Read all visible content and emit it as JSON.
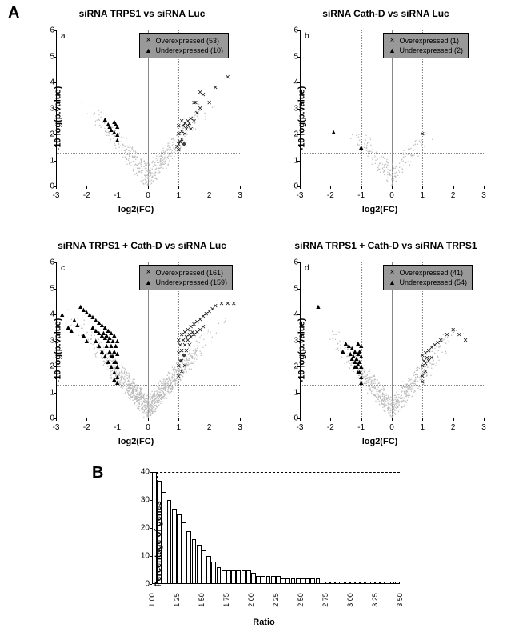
{
  "panelA": {
    "label": "A",
    "xlabel": "log2(FC)",
    "ylabel": "-10 log(p.value)",
    "xlim": [
      -3,
      3
    ],
    "ylim": [
      0,
      6
    ],
    "xticks": [
      -3,
      -2,
      -1,
      0,
      1,
      2,
      3
    ],
    "yticks": [
      0,
      1,
      2,
      3,
      4,
      5,
      6
    ],
    "threshold_x": [
      -1,
      1
    ],
    "threshold_y": 1.3,
    "colors": {
      "bg_point": "#bbbbbb",
      "sig_point": "#000000",
      "legend_bg": "#999999"
    },
    "charts": [
      {
        "id": "a",
        "title": "siRNA TRPS1 vs siRNA Luc",
        "legend": {
          "over": "Overexpressed  (53)",
          "under": "Underexpressed (10)"
        },
        "over_points": [
          [
            0.95,
            1.5
          ],
          [
            1.0,
            2.0
          ],
          [
            1.0,
            2.3
          ],
          [
            1.05,
            1.7
          ],
          [
            1.1,
            2.1
          ],
          [
            1.1,
            2.5
          ],
          [
            1.15,
            2.3
          ],
          [
            1.2,
            2.0
          ],
          [
            1.2,
            2.4
          ],
          [
            1.25,
            2.2
          ],
          [
            1.3,
            2.5
          ],
          [
            1.3,
            2.3
          ],
          [
            1.35,
            2.4
          ],
          [
            1.4,
            2.6
          ],
          [
            1.4,
            2.2
          ],
          [
            1.5,
            2.5
          ],
          [
            1.5,
            3.2
          ],
          [
            1.55,
            3.2
          ],
          [
            1.6,
            2.8
          ],
          [
            1.7,
            3.0
          ],
          [
            1.7,
            3.6
          ],
          [
            1.8,
            3.5
          ],
          [
            2.0,
            3.2
          ],
          [
            2.2,
            3.8
          ],
          [
            2.6,
            4.2
          ],
          [
            1.0,
            1.6
          ],
          [
            1.1,
            1.8
          ],
          [
            1.2,
            1.6
          ],
          [
            1.0,
            1.4
          ],
          [
            1.15,
            1.6
          ]
        ],
        "under_points": [
          [
            -1.0,
            2.0
          ],
          [
            -1.0,
            2.3
          ],
          [
            -1.05,
            2.4
          ],
          [
            -1.1,
            2.1
          ],
          [
            -1.1,
            2.5
          ],
          [
            -1.2,
            2.2
          ],
          [
            -1.25,
            2.3
          ],
          [
            -1.3,
            2.4
          ],
          [
            -1.4,
            2.6
          ],
          [
            -1.0,
            1.8
          ]
        ],
        "bg_density": "low"
      },
      {
        "id": "b",
        "title": "siRNA Cath-D vs siRNA Luc",
        "legend": {
          "over": "Overexpressed  (1)",
          "under": "Underexpressed (2)"
        },
        "over_points": [
          [
            1.0,
            2.0
          ]
        ],
        "under_points": [
          [
            -1.9,
            2.1
          ],
          [
            -1.0,
            1.5
          ]
        ],
        "bg_density": "verylow"
      },
      {
        "id": "c",
        "title": "siRNA TRPS1 + Cath-D  vs siRNA Luc",
        "legend": {
          "over": "Overexpressed  (161)",
          "under": "Underexpressed (159)"
        },
        "over_points": [
          [
            1.0,
            2.5
          ],
          [
            1.0,
            3.0
          ],
          [
            1.05,
            2.8
          ],
          [
            1.1,
            3.2
          ],
          [
            1.1,
            2.6
          ],
          [
            1.15,
            3.0
          ],
          [
            1.2,
            3.3
          ],
          [
            1.2,
            2.8
          ],
          [
            1.25,
            3.1
          ],
          [
            1.3,
            3.4
          ],
          [
            1.3,
            3.0
          ],
          [
            1.35,
            3.2
          ],
          [
            1.4,
            3.5
          ],
          [
            1.4,
            3.1
          ],
          [
            1.45,
            3.3
          ],
          [
            1.5,
            3.6
          ],
          [
            1.5,
            3.2
          ],
          [
            1.6,
            3.7
          ],
          [
            1.6,
            3.3
          ],
          [
            1.7,
            3.8
          ],
          [
            1.7,
            3.4
          ],
          [
            1.8,
            3.9
          ],
          [
            1.8,
            3.5
          ],
          [
            1.9,
            4.0
          ],
          [
            2.0,
            4.1
          ],
          [
            2.1,
            4.2
          ],
          [
            2.2,
            4.3
          ],
          [
            2.4,
            4.4
          ],
          [
            2.6,
            4.4
          ],
          [
            2.8,
            4.4
          ],
          [
            1.0,
            2.0
          ],
          [
            1.1,
            2.2
          ],
          [
            1.2,
            2.4
          ],
          [
            1.05,
            2.2
          ],
          [
            1.15,
            2.4
          ],
          [
            1.25,
            2.6
          ],
          [
            1.35,
            2.8
          ],
          [
            1.0,
            1.6
          ],
          [
            1.1,
            1.8
          ],
          [
            1.2,
            2.0
          ]
        ],
        "under_points": [
          [
            -1.0,
            2.5
          ],
          [
            -1.0,
            3.0
          ],
          [
            -1.05,
            2.8
          ],
          [
            -1.1,
            3.2
          ],
          [
            -1.1,
            2.6
          ],
          [
            -1.15,
            3.0
          ],
          [
            -1.2,
            3.3
          ],
          [
            -1.2,
            2.8
          ],
          [
            -1.25,
            3.1
          ],
          [
            -1.3,
            3.4
          ],
          [
            -1.3,
            3.0
          ],
          [
            -1.35,
            3.2
          ],
          [
            -1.4,
            3.5
          ],
          [
            -1.4,
            3.1
          ],
          [
            -1.45,
            3.3
          ],
          [
            -1.5,
            3.6
          ],
          [
            -1.5,
            3.2
          ],
          [
            -1.6,
            3.7
          ],
          [
            -1.6,
            3.3
          ],
          [
            -1.7,
            3.8
          ],
          [
            -1.7,
            3.4
          ],
          [
            -1.8,
            3.9
          ],
          [
            -1.8,
            3.5
          ],
          [
            -1.9,
            4.0
          ],
          [
            -2.0,
            4.1
          ],
          [
            -2.1,
            4.2
          ],
          [
            -2.2,
            4.3
          ],
          [
            -2.4,
            3.8
          ],
          [
            -2.6,
            3.5
          ],
          [
            -2.8,
            4.0
          ],
          [
            -2.3,
            3.6
          ],
          [
            -2.5,
            3.4
          ],
          [
            -1.0,
            2.0
          ],
          [
            -1.1,
            2.2
          ],
          [
            -1.2,
            2.4
          ],
          [
            -1.05,
            2.2
          ],
          [
            -1.15,
            2.4
          ],
          [
            -1.25,
            2.6
          ],
          [
            -1.35,
            2.8
          ],
          [
            -1.0,
            1.6
          ],
          [
            -1.1,
            1.8
          ],
          [
            -1.2,
            2.0
          ],
          [
            -1.3,
            2.2
          ],
          [
            -1.4,
            2.4
          ],
          [
            -1.5,
            2.6
          ],
          [
            -1.6,
            2.8
          ],
          [
            -1.7,
            3.0
          ],
          [
            -1.0,
            1.4
          ],
          [
            -1.1,
            1.5
          ],
          [
            -2.0,
            3.0
          ],
          [
            -2.1,
            3.2
          ]
        ],
        "bg_density": "high"
      },
      {
        "id": "d",
        "title": "siRNA TRPS1 + Cath-D vs siRNA TRPS1",
        "legend": {
          "over": "Overexpressed  (41)",
          "under": "Underexpressed (54)"
        },
        "over_points": [
          [
            1.0,
            2.0
          ],
          [
            1.0,
            2.4
          ],
          [
            1.05,
            2.2
          ],
          [
            1.1,
            2.5
          ],
          [
            1.1,
            2.1
          ],
          [
            1.15,
            2.3
          ],
          [
            1.2,
            2.6
          ],
          [
            1.2,
            2.2
          ],
          [
            1.3,
            2.7
          ],
          [
            1.3,
            2.3
          ],
          [
            1.4,
            2.8
          ],
          [
            1.5,
            2.9
          ],
          [
            1.6,
            3.0
          ],
          [
            1.8,
            3.2
          ],
          [
            2.0,
            3.4
          ],
          [
            2.2,
            3.2
          ],
          [
            2.4,
            3.0
          ],
          [
            1.0,
            1.6
          ],
          [
            1.1,
            1.8
          ],
          [
            1.0,
            1.4
          ]
        ],
        "under_points": [
          [
            -1.0,
            2.0
          ],
          [
            -1.0,
            2.4
          ],
          [
            -1.05,
            2.2
          ],
          [
            -1.1,
            2.5
          ],
          [
            -1.1,
            2.1
          ],
          [
            -1.15,
            2.3
          ],
          [
            -1.2,
            2.6
          ],
          [
            -1.2,
            2.2
          ],
          [
            -1.25,
            2.4
          ],
          [
            -1.3,
            2.7
          ],
          [
            -1.3,
            2.3
          ],
          [
            -1.35,
            2.5
          ],
          [
            -1.4,
            2.8
          ],
          [
            -1.5,
            2.9
          ],
          [
            -1.6,
            2.6
          ],
          [
            -1.0,
            1.6
          ],
          [
            -1.1,
            1.8
          ],
          [
            -1.0,
            1.4
          ],
          [
            -1.2,
            2.0
          ],
          [
            -1.05,
            1.8
          ],
          [
            -1.15,
            2.0
          ],
          [
            -1.0,
            2.8
          ],
          [
            -1.1,
            2.9
          ],
          [
            -1.05,
            2.6
          ],
          [
            -2.4,
            4.3
          ]
        ],
        "bg_density": "medium"
      }
    ]
  },
  "panelB": {
    "label": "B",
    "xlabel": "Ratio",
    "ylabel": "Percentage of genes",
    "xlim": [
      1.0,
      3.5
    ],
    "ylim": [
      0,
      40
    ],
    "yticks": [
      0,
      10,
      20,
      30,
      40
    ],
    "xticks": [
      "1.00",
      "1.25",
      "1.50",
      "1.75",
      "2.00",
      "2.25",
      "2.50",
      "2.75",
      "3.00",
      "3.25",
      "3.50"
    ],
    "dash_v": 1.05,
    "dash_h": 40,
    "bars": [
      40,
      37,
      33,
      30,
      27,
      25,
      22,
      19,
      16,
      14,
      12,
      10,
      8,
      6,
      5,
      5,
      5,
      5,
      5,
      5,
      4,
      3,
      3,
      3,
      3,
      3,
      2,
      2,
      2,
      2,
      2,
      2,
      2,
      2,
      1,
      1,
      1,
      1,
      1,
      1,
      1,
      1,
      1,
      1,
      1,
      1,
      1,
      1,
      1,
      1
    ]
  }
}
